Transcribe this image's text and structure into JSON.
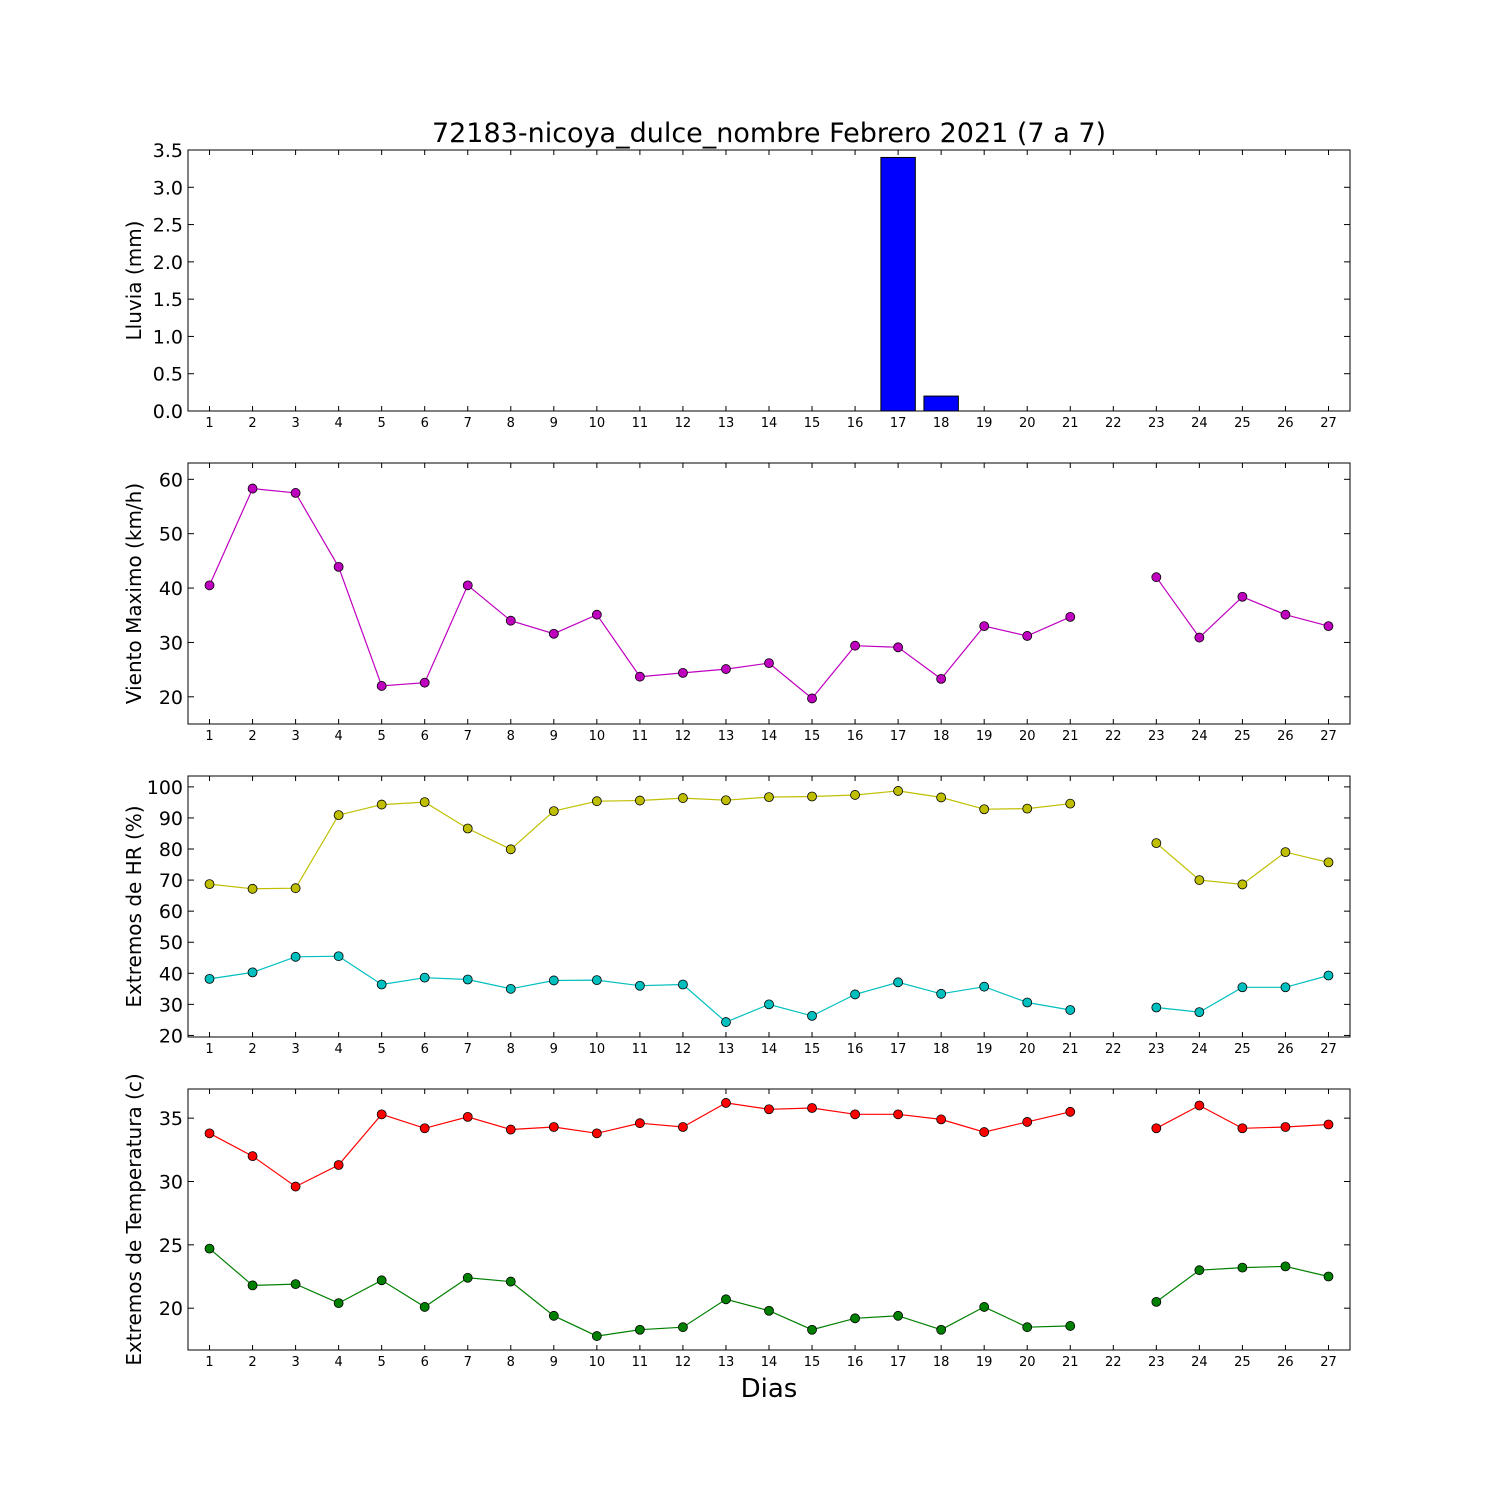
{
  "title": "72183-nicoya_dulce_nombre Febrero 2021  (7 a 7)",
  "xlabel": "Dias",
  "days": [
    1,
    2,
    3,
    4,
    5,
    6,
    7,
    8,
    9,
    10,
    11,
    12,
    13,
    14,
    15,
    16,
    17,
    18,
    19,
    20,
    21,
    22,
    23,
    24,
    25,
    26,
    27
  ],
  "chart_data": [
    {
      "type": "bar",
      "ylabel": "Lluvia (mm)",
      "ylim": [
        0,
        3.5
      ],
      "yticks": [
        0.0,
        0.5,
        1.0,
        1.5,
        2.0,
        2.5,
        3.0,
        3.5
      ],
      "yticklabels": [
        "0.0",
        "0.5",
        "1.0",
        "1.5",
        "2.0",
        "2.5",
        "3.0",
        "3.5"
      ],
      "series": [
        {
          "color": "#0000ff",
          "values": [
            0,
            0,
            0,
            0,
            0,
            0,
            0,
            0,
            0,
            0,
            0,
            0,
            0,
            0,
            0,
            0,
            3.4,
            0.2,
            0,
            0,
            0,
            0,
            0,
            0,
            0,
            0,
            0
          ]
        }
      ]
    },
    {
      "type": "line",
      "ylabel": "Viento Maximo (km/h)",
      "ylim": [
        15,
        63
      ],
      "yticks": [
        20,
        30,
        40,
        50,
        60
      ],
      "yticklabels": [
        "20",
        "30",
        "40",
        "50",
        "60"
      ],
      "series": [
        {
          "color": "#bf00bf",
          "values": [
            40.5,
            58.3,
            57.5,
            43.9,
            22.0,
            22.6,
            40.5,
            34.0,
            31.6,
            35.1,
            23.7,
            24.4,
            25.1,
            26.2,
            19.7,
            29.4,
            29.1,
            23.3,
            33.0,
            31.2,
            34.7,
            null,
            42.0,
            30.9,
            38.4,
            35.1,
            33.0
          ]
        }
      ]
    },
    {
      "type": "line",
      "ylabel": "Extremos de HR (%)",
      "ylim": [
        19.5,
        103.5
      ],
      "yticks": [
        20,
        30,
        40,
        50,
        60,
        70,
        80,
        90,
        100
      ],
      "yticklabels": [
        "20",
        "30",
        "40",
        "50",
        "60",
        "70",
        "80",
        "90",
        "100"
      ],
      "series": [
        {
          "color": "#bfbf00",
          "values": [
            68.7,
            67.2,
            67.4,
            90.9,
            94.3,
            95.1,
            86.6,
            79.9,
            92.2,
            95.4,
            95.6,
            96.4,
            95.7,
            96.7,
            96.9,
            97.4,
            98.7,
            96.6,
            92.8,
            93.0,
            94.6,
            null,
            81.9,
            70.0,
            68.6,
            79.0,
            75.7
          ]
        },
        {
          "color": "#00bfbf",
          "values": [
            38.2,
            40.3,
            45.3,
            45.5,
            36.4,
            38.6,
            38.0,
            35.0,
            37.7,
            37.8,
            36.0,
            36.4,
            24.3,
            30.0,
            26.3,
            33.2,
            37.1,
            33.4,
            35.7,
            30.6,
            28.2,
            null,
            29.0,
            27.5,
            35.5,
            35.5,
            39.3
          ]
        }
      ]
    },
    {
      "type": "line",
      "ylabel": "Extremos de Temperatura (c)",
      "xlabel": "Dias",
      "ylim": [
        16.7,
        37.3
      ],
      "yticks": [
        20,
        25,
        30,
        35
      ],
      "yticklabels": [
        "20",
        "25",
        "30",
        "35"
      ],
      "series": [
        {
          "color": "#ff0000",
          "values": [
            33.8,
            32.0,
            29.6,
            31.3,
            35.3,
            34.2,
            35.1,
            34.1,
            34.3,
            33.8,
            34.6,
            34.3,
            36.2,
            35.7,
            35.8,
            35.3,
            35.3,
            34.9,
            33.9,
            34.7,
            35.5,
            null,
            34.2,
            36.0,
            34.2,
            34.3,
            34.5
          ]
        },
        {
          "color": "#008000",
          "values": [
            24.7,
            21.8,
            21.9,
            20.4,
            22.2,
            20.1,
            22.4,
            22.1,
            19.4,
            17.8,
            18.3,
            18.5,
            20.7,
            19.8,
            18.3,
            19.2,
            19.4,
            18.3,
            20.1,
            18.5,
            18.6,
            null,
            20.5,
            23.0,
            23.2,
            23.3,
            22.5
          ]
        }
      ]
    }
  ]
}
